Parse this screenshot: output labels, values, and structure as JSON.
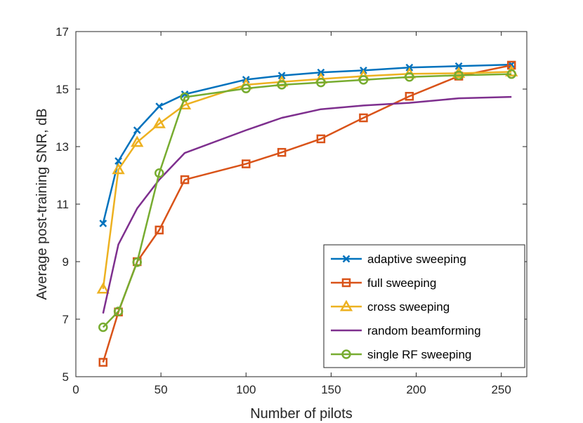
{
  "chart_data": {
    "type": "line",
    "title": "",
    "xlabel": "Number of pilots",
    "ylabel": "Average post-training SNR, dB",
    "xlim": [
      0,
      265
    ],
    "ylim": [
      5,
      17
    ],
    "xticks": [
      0,
      50,
      100,
      150,
      200,
      250
    ],
    "yticks": [
      5,
      7,
      9,
      11,
      13,
      15,
      17
    ],
    "grid": false,
    "legend_position": "bottom-right",
    "series": [
      {
        "name": "adaptive sweeping",
        "color": "#0072BD",
        "marker": "x",
        "x": [
          16,
          25,
          36,
          49,
          64,
          100,
          121,
          144,
          169,
          196,
          225,
          256
        ],
        "y": [
          10.33,
          12.5,
          13.57,
          14.4,
          14.82,
          15.33,
          15.47,
          15.58,
          15.65,
          15.75,
          15.8,
          15.85
        ]
      },
      {
        "name": "full sweeping",
        "color": "#D95319",
        "marker": "square",
        "x": [
          16,
          25,
          36,
          49,
          64,
          100,
          121,
          144,
          169,
          196,
          225,
          256
        ],
        "y": [
          5.5,
          7.25,
          9.0,
          10.1,
          11.85,
          12.4,
          12.8,
          13.27,
          14.0,
          14.75,
          15.45,
          15.83
        ]
      },
      {
        "name": "cross sweeping",
        "color": "#EDB120",
        "marker": "triangle",
        "x": [
          16,
          25,
          36,
          49,
          64,
          100,
          121,
          144,
          169,
          196,
          225,
          256
        ],
        "y": [
          8.05,
          12.2,
          13.15,
          13.8,
          14.45,
          15.15,
          15.25,
          15.35,
          15.45,
          15.53,
          15.55,
          15.6
        ]
      },
      {
        "name": "random beamforming",
        "color": "#7E2F8E",
        "marker": "none",
        "x": [
          16,
          25,
          36,
          49,
          64,
          100,
          121,
          144,
          169,
          196,
          225,
          256
        ],
        "y": [
          7.2,
          9.6,
          10.85,
          11.85,
          12.78,
          13.57,
          14.0,
          14.3,
          14.43,
          14.52,
          14.68,
          14.73
        ]
      },
      {
        "name": "single RF sweeping",
        "color": "#77AC30",
        "marker": "circle",
        "x": [
          16,
          25,
          36,
          49,
          64,
          100,
          121,
          144,
          169,
          196,
          225,
          256
        ],
        "y": [
          6.72,
          7.27,
          8.98,
          12.08,
          14.72,
          15.02,
          15.15,
          15.23,
          15.32,
          15.42,
          15.48,
          15.52
        ]
      }
    ]
  }
}
